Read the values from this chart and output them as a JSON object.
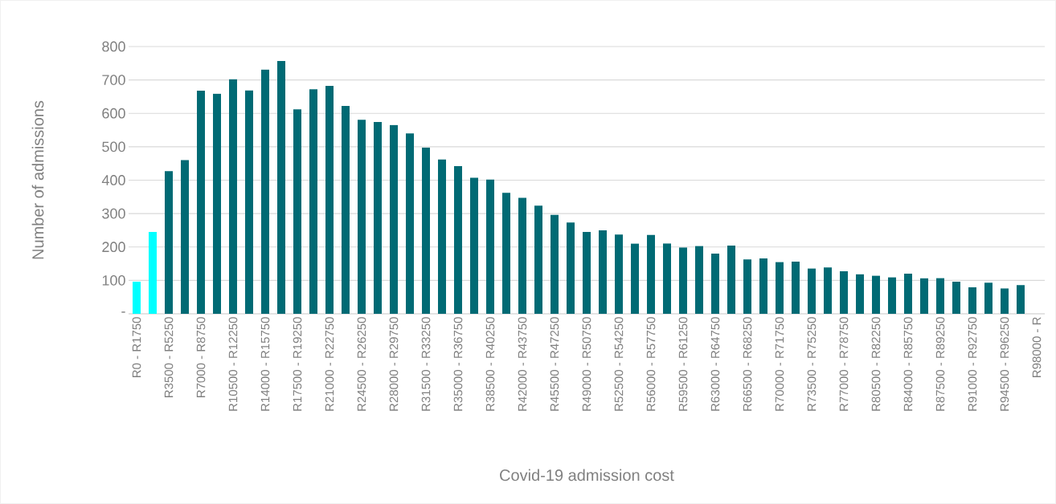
{
  "chart_data": {
    "type": "bar",
    "xlabel": "Covid-19 admission cost",
    "ylabel": "Number of admissions",
    "categories": [
      "R0 - R1750",
      null,
      "R3500 - R5250",
      null,
      "R7000 - R8750",
      null,
      "R10500 - R12250",
      null,
      "R14000 - R15750",
      null,
      "R17500 - R19250",
      null,
      "R21000 - R22750",
      null,
      "R24500 - R26250",
      null,
      "R28000 - R29750",
      null,
      "R31500 - R33250",
      null,
      "R35000 - R36750",
      null,
      "R38500 - R40250",
      null,
      "R42000 - R43750",
      null,
      "R45500 - R47250",
      null,
      "R49000 - R50750",
      null,
      "R52500 - R54250",
      null,
      "R56000 - R57750",
      null,
      "R59500 - R61250",
      null,
      "R63000 - R64750",
      null,
      "R66500 - R68250",
      null,
      "R70000 - R71750",
      null,
      "R73500 - R75250",
      null,
      "R77000 - R78750",
      null,
      "R80500 - R82250",
      null,
      "R84000 - R85750",
      null,
      "R87500 - R89250",
      null,
      "R91000 - R92750",
      null,
      "R94500 - R96250",
      null,
      "R98000 - R"
    ],
    "values": [
      96,
      245,
      427,
      460,
      668,
      659,
      702,
      669,
      731,
      757,
      612,
      672,
      682,
      622,
      581,
      574,
      565,
      540,
      498,
      462,
      442,
      407,
      402,
      362,
      347,
      324,
      296,
      273,
      245,
      250,
      237,
      210,
      236,
      211,
      199,
      203,
      180,
      204,
      163,
      166,
      155,
      156,
      136,
      139,
      127,
      118,
      114,
      109,
      120,
      106,
      107,
      96,
      79,
      93,
      76,
      86,
      null
    ],
    "colors": [
      "#00ffff",
      "#00ffff",
      "#006a74",
      "#006a74",
      "#006a74",
      "#006a74",
      "#006a74",
      "#006a74",
      "#006a74",
      "#006a74",
      "#006a74",
      "#006a74",
      "#006a74",
      "#006a74",
      "#006a74",
      "#006a74",
      "#006a74",
      "#006a74",
      "#006a74",
      "#006a74",
      "#006a74",
      "#006a74",
      "#006a74",
      "#006a74",
      "#006a74",
      "#006a74",
      "#006a74",
      "#006a74",
      "#006a74",
      "#006a74",
      "#006a74",
      "#006a74",
      "#006a74",
      "#006a74",
      "#006a74",
      "#006a74",
      "#006a74",
      "#006a74",
      "#006a74",
      "#006a74",
      "#006a74",
      "#006a74",
      "#006a74",
      "#006a74",
      "#006a74",
      "#006a74",
      "#006a74",
      "#006a74",
      "#006a74",
      "#006a74",
      "#006a74",
      "#006a74",
      "#006a74",
      "#006a74",
      "#006a74",
      "#006a74",
      "#006a74"
    ],
    "ylim": [
      0,
      800
    ],
    "yticks": [
      {
        "value": 0,
        "label": "-"
      },
      100,
      200,
      300,
      400,
      500,
      600,
      700,
      800
    ],
    "grid": "y"
  }
}
